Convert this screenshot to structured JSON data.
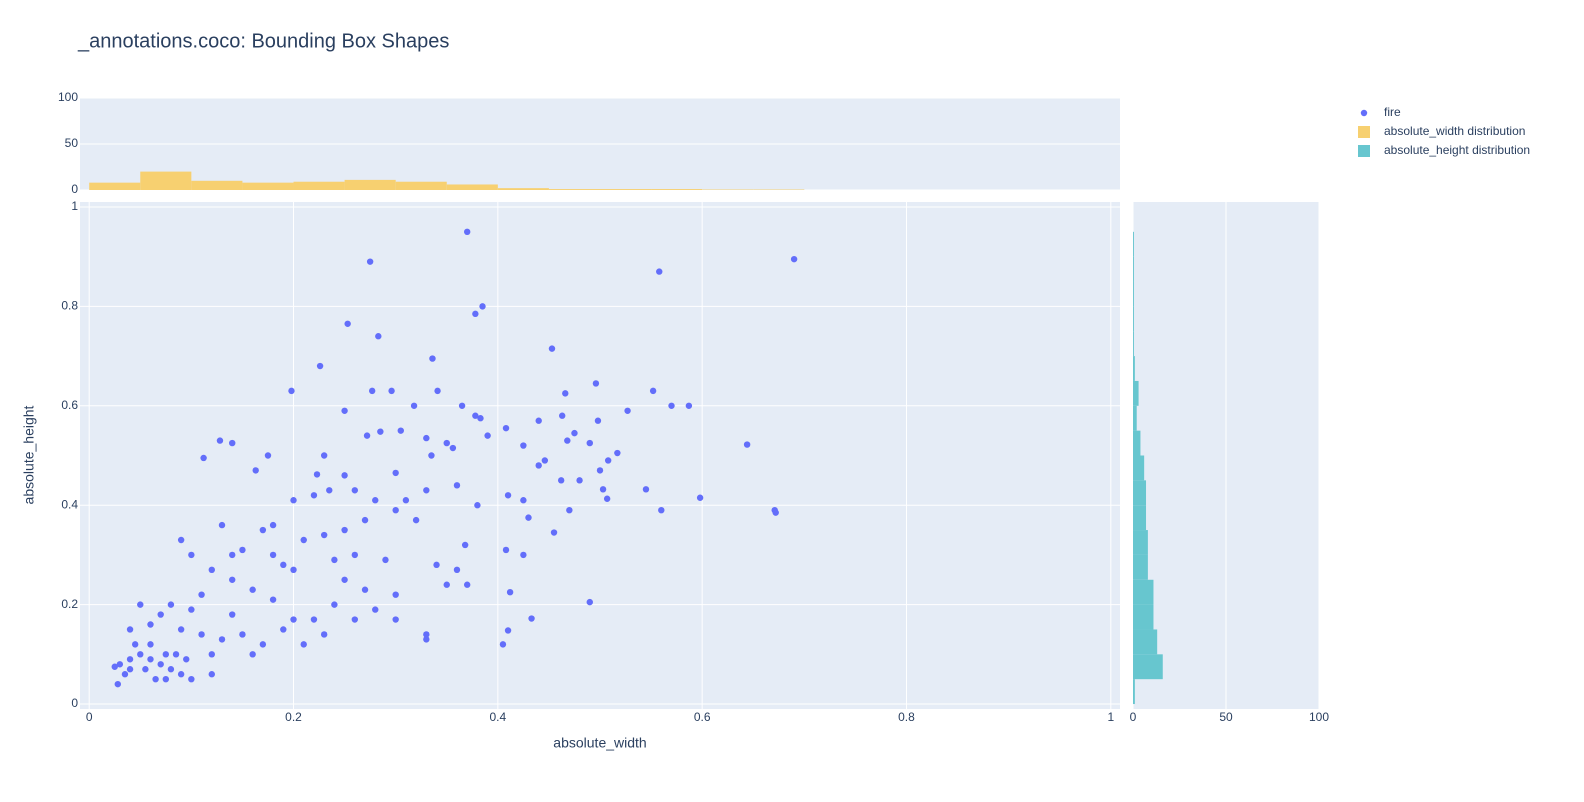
{
  "chart_data": [
    {
      "type": "scatter",
      "title": "_annotations.coco: Bounding Box Shapes",
      "xlabel": "absolute_width",
      "ylabel": "absolute_height",
      "xlim": [
        -0.009,
        1.009
      ],
      "ylim": [
        -0.01,
        1.01
      ],
      "xticks": [
        0,
        0.2,
        0.4,
        0.6,
        0.8,
        1
      ],
      "yticks": [
        0,
        0.2,
        0.4,
        0.6,
        0.8,
        1
      ],
      "grid": true,
      "series": [
        {
          "name": "fire",
          "color": "#636efa",
          "points": [
            [
              0.37,
              0.95
            ],
            [
              0.275,
              0.89
            ],
            [
              0.69,
              0.895
            ],
            [
              0.558,
              0.87
            ],
            [
              0.385,
              0.8
            ],
            [
              0.378,
              0.785
            ],
            [
              0.253,
              0.765
            ],
            [
              0.283,
              0.74
            ],
            [
              0.336,
              0.695
            ],
            [
              0.226,
              0.68
            ],
            [
              0.453,
              0.715
            ],
            [
              0.198,
              0.63
            ],
            [
              0.277,
              0.63
            ],
            [
              0.296,
              0.63
            ],
            [
              0.341,
              0.63
            ],
            [
              0.496,
              0.645
            ],
            [
              0.552,
              0.63
            ],
            [
              0.466,
              0.625
            ],
            [
              0.57,
              0.6
            ],
            [
              0.587,
              0.6
            ],
            [
              0.365,
              0.6
            ],
            [
              0.318,
              0.6
            ],
            [
              0.25,
              0.59
            ],
            [
              0.527,
              0.59
            ],
            [
              0.378,
              0.58
            ],
            [
              0.383,
              0.575
            ],
            [
              0.44,
              0.57
            ],
            [
              0.498,
              0.57
            ],
            [
              0.463,
              0.58
            ],
            [
              0.408,
              0.555
            ],
            [
              0.305,
              0.55
            ],
            [
              0.285,
              0.548
            ],
            [
              0.272,
              0.54
            ],
            [
              0.39,
              0.54
            ],
            [
              0.475,
              0.545
            ],
            [
              0.128,
              0.53
            ],
            [
              0.14,
              0.525
            ],
            [
              0.644,
              0.522
            ],
            [
              0.468,
              0.53
            ],
            [
              0.49,
              0.525
            ],
            [
              0.425,
              0.52
            ],
            [
              0.35,
              0.525
            ],
            [
              0.33,
              0.535
            ],
            [
              0.517,
              0.505
            ],
            [
              0.356,
              0.515
            ],
            [
              0.112,
              0.495
            ],
            [
              0.175,
              0.5
            ],
            [
              0.23,
              0.5
            ],
            [
              0.446,
              0.49
            ],
            [
              0.335,
              0.5
            ],
            [
              0.163,
              0.47
            ],
            [
              0.5,
              0.47
            ],
            [
              0.508,
              0.49
            ],
            [
              0.223,
              0.462
            ],
            [
              0.25,
              0.46
            ],
            [
              0.3,
              0.465
            ],
            [
              0.44,
              0.48
            ],
            [
              0.462,
              0.45
            ],
            [
              0.48,
              0.45
            ],
            [
              0.545,
              0.432
            ],
            [
              0.503,
              0.432
            ],
            [
              0.507,
              0.413
            ],
            [
              0.598,
              0.415
            ],
            [
              0.56,
              0.39
            ],
            [
              0.671,
              0.39
            ],
            [
              0.672,
              0.385
            ],
            [
              0.41,
              0.42
            ],
            [
              0.425,
              0.41
            ],
            [
              0.47,
              0.39
            ],
            [
              0.38,
              0.4
            ],
            [
              0.43,
              0.375
            ],
            [
              0.455,
              0.345
            ],
            [
              0.408,
              0.31
            ],
            [
              0.425,
              0.3
            ],
            [
              0.368,
              0.32
            ],
            [
              0.49,
              0.205
            ],
            [
              0.412,
              0.225
            ],
            [
              0.433,
              0.172
            ],
            [
              0.41,
              0.148
            ],
            [
              0.405,
              0.12
            ],
            [
              0.2,
              0.41
            ],
            [
              0.22,
              0.42
            ],
            [
              0.235,
              0.43
            ],
            [
              0.26,
              0.43
            ],
            [
              0.28,
              0.41
            ],
            [
              0.31,
              0.41
            ],
            [
              0.33,
              0.43
            ],
            [
              0.36,
              0.44
            ],
            [
              0.3,
              0.39
            ],
            [
              0.32,
              0.37
            ],
            [
              0.27,
              0.37
            ],
            [
              0.25,
              0.35
            ],
            [
              0.23,
              0.34
            ],
            [
              0.21,
              0.33
            ],
            [
              0.18,
              0.36
            ],
            [
              0.17,
              0.35
            ],
            [
              0.15,
              0.31
            ],
            [
              0.14,
              0.3
            ],
            [
              0.19,
              0.28
            ],
            [
              0.2,
              0.27
            ],
            [
              0.24,
              0.29
            ],
            [
              0.26,
              0.3
            ],
            [
              0.29,
              0.29
            ],
            [
              0.34,
              0.28
            ],
            [
              0.36,
              0.27
            ],
            [
              0.37,
              0.24
            ],
            [
              0.35,
              0.24
            ],
            [
              0.3,
              0.22
            ],
            [
              0.27,
              0.23
            ],
            [
              0.24,
              0.2
            ],
            [
              0.22,
              0.17
            ],
            [
              0.2,
              0.17
            ],
            [
              0.18,
              0.21
            ],
            [
              0.16,
              0.23
            ],
            [
              0.14,
              0.25
            ],
            [
              0.12,
              0.27
            ],
            [
              0.1,
              0.3
            ],
            [
              0.09,
              0.33
            ],
            [
              0.13,
              0.36
            ],
            [
              0.11,
              0.22
            ],
            [
              0.1,
              0.19
            ],
            [
              0.09,
              0.15
            ],
            [
              0.08,
              0.2
            ],
            [
              0.07,
              0.18
            ],
            [
              0.06,
              0.16
            ],
            [
              0.05,
              0.2
            ],
            [
              0.04,
              0.15
            ],
            [
              0.045,
              0.12
            ],
            [
              0.05,
              0.1
            ],
            [
              0.06,
              0.09
            ],
            [
              0.07,
              0.08
            ],
            [
              0.08,
              0.07
            ],
            [
              0.09,
              0.06
            ],
            [
              0.1,
              0.05
            ],
            [
              0.03,
              0.08
            ],
            [
              0.025,
              0.075
            ],
            [
              0.035,
              0.06
            ],
            [
              0.028,
              0.04
            ],
            [
              0.04,
              0.09
            ],
            [
              0.055,
              0.07
            ],
            [
              0.065,
              0.05
            ],
            [
              0.075,
              0.05
            ],
            [
              0.085,
              0.1
            ],
            [
              0.12,
              0.1
            ],
            [
              0.13,
              0.13
            ],
            [
              0.15,
              0.14
            ],
            [
              0.17,
              0.12
            ],
            [
              0.16,
              0.1
            ],
            [
              0.14,
              0.18
            ],
            [
              0.19,
              0.15
            ],
            [
              0.21,
              0.12
            ],
            [
              0.23,
              0.14
            ],
            [
              0.26,
              0.17
            ],
            [
              0.28,
              0.19
            ],
            [
              0.3,
              0.17
            ],
            [
              0.33,
              0.14
            ],
            [
              0.33,
              0.13
            ],
            [
              0.25,
              0.25
            ],
            [
              0.18,
              0.3
            ],
            [
              0.11,
              0.14
            ],
            [
              0.06,
              0.12
            ],
            [
              0.12,
              0.06
            ],
            [
              0.075,
              0.1
            ],
            [
              0.095,
              0.09
            ],
            [
              0.04,
              0.07
            ]
          ]
        }
      ]
    },
    {
      "type": "histogram",
      "name": "absolute_width distribution",
      "color": "#f7d070",
      "bins": [
        0,
        0.05,
        0.1,
        0.15,
        0.2,
        0.25,
        0.3,
        0.35,
        0.4,
        0.45,
        0.5,
        0.55,
        0.6,
        0.65,
        0.7
      ],
      "values": [
        8,
        20,
        10,
        8,
        9,
        11,
        9,
        6,
        2,
        1,
        1,
        1,
        0.5,
        0.5
      ],
      "ylim": [
        0,
        100
      ],
      "yticks": [
        0,
        50,
        100
      ]
    },
    {
      "type": "histogram-h",
      "name": "absolute_height distribution",
      "color": "#67c6cf",
      "bins": [
        0,
        0.05,
        0.1,
        0.15,
        0.2,
        0.25,
        0.3,
        0.35,
        0.4,
        0.45,
        0.5,
        0.55,
        0.6,
        0.65,
        0.7,
        0.75,
        0.8,
        0.85,
        0.9,
        0.95
      ],
      "values": [
        1,
        16,
        13,
        11,
        11,
        8,
        8,
        7,
        7,
        6,
        4,
        2,
        3,
        1,
        0.5,
        0.5,
        0.5,
        0.5,
        0.5
      ],
      "xlim": [
        0,
        100
      ],
      "xticks": [
        0,
        50,
        100
      ]
    }
  ]
}
